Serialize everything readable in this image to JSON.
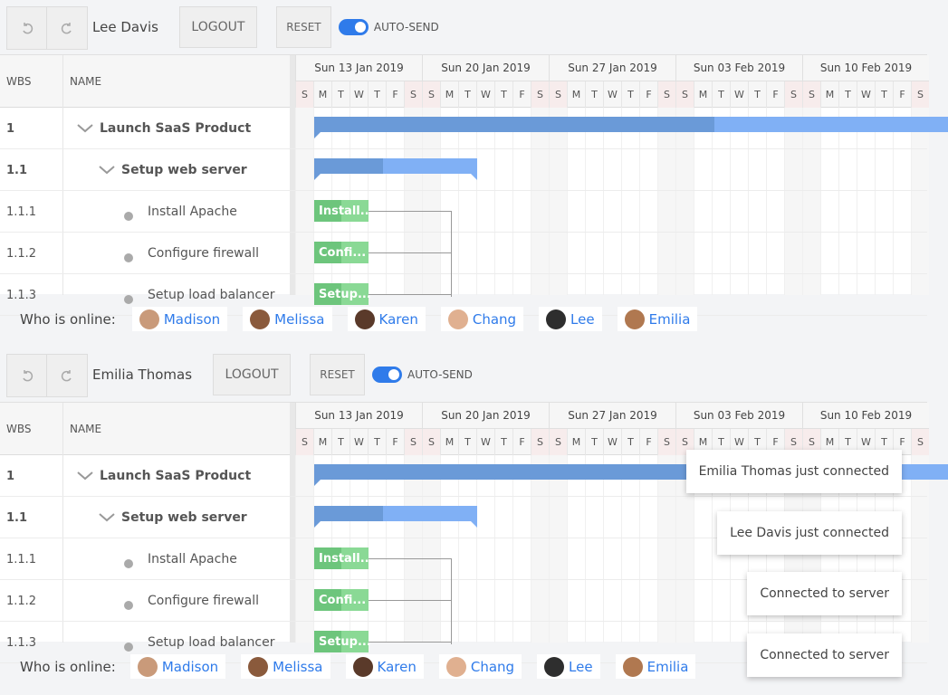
{
  "panels": [
    {
      "user": "Lee Davis",
      "logout": "LOGOUT",
      "reset": "RESET",
      "auto_send": "AUTO-SEND"
    },
    {
      "user": "Emilia Thomas",
      "logout": "LOGOUT",
      "reset": "RESET",
      "auto_send": "AUTO-SEND"
    }
  ],
  "gantt": {
    "columns": {
      "wbs": "WBS",
      "name": "NAME"
    },
    "weeks": [
      "Sun 13 Jan 2019",
      "Sun 20 Jan 2019",
      "Sun 27 Jan 2019",
      "Sun 03 Feb 2019",
      "Sun 10 Feb 2019"
    ],
    "days": [
      "S",
      "M",
      "T",
      "W",
      "T",
      "F",
      "S"
    ],
    "rows": [
      {
        "wbs": "1",
        "name": "Launch SaaS Product"
      },
      {
        "wbs": "1.1",
        "name": "Setup web server"
      },
      {
        "wbs": "1.1.1",
        "name": "Install Apache",
        "bar": "Install..."
      },
      {
        "wbs": "1.1.2",
        "name": "Configure firewall",
        "bar": "Confi..."
      },
      {
        "wbs": "1.1.3",
        "name": "Setup load balancer",
        "bar": "Setup..."
      }
    ]
  },
  "online": {
    "label": "Who is online:",
    "users": [
      "Madison",
      "Melissa",
      "Karen",
      "Chang",
      "Lee",
      "Emilia"
    ]
  },
  "toasts": [
    "Emilia Thomas just connected",
    "Lee Davis just connected",
    "Connected to server",
    "Connected to server"
  ]
}
